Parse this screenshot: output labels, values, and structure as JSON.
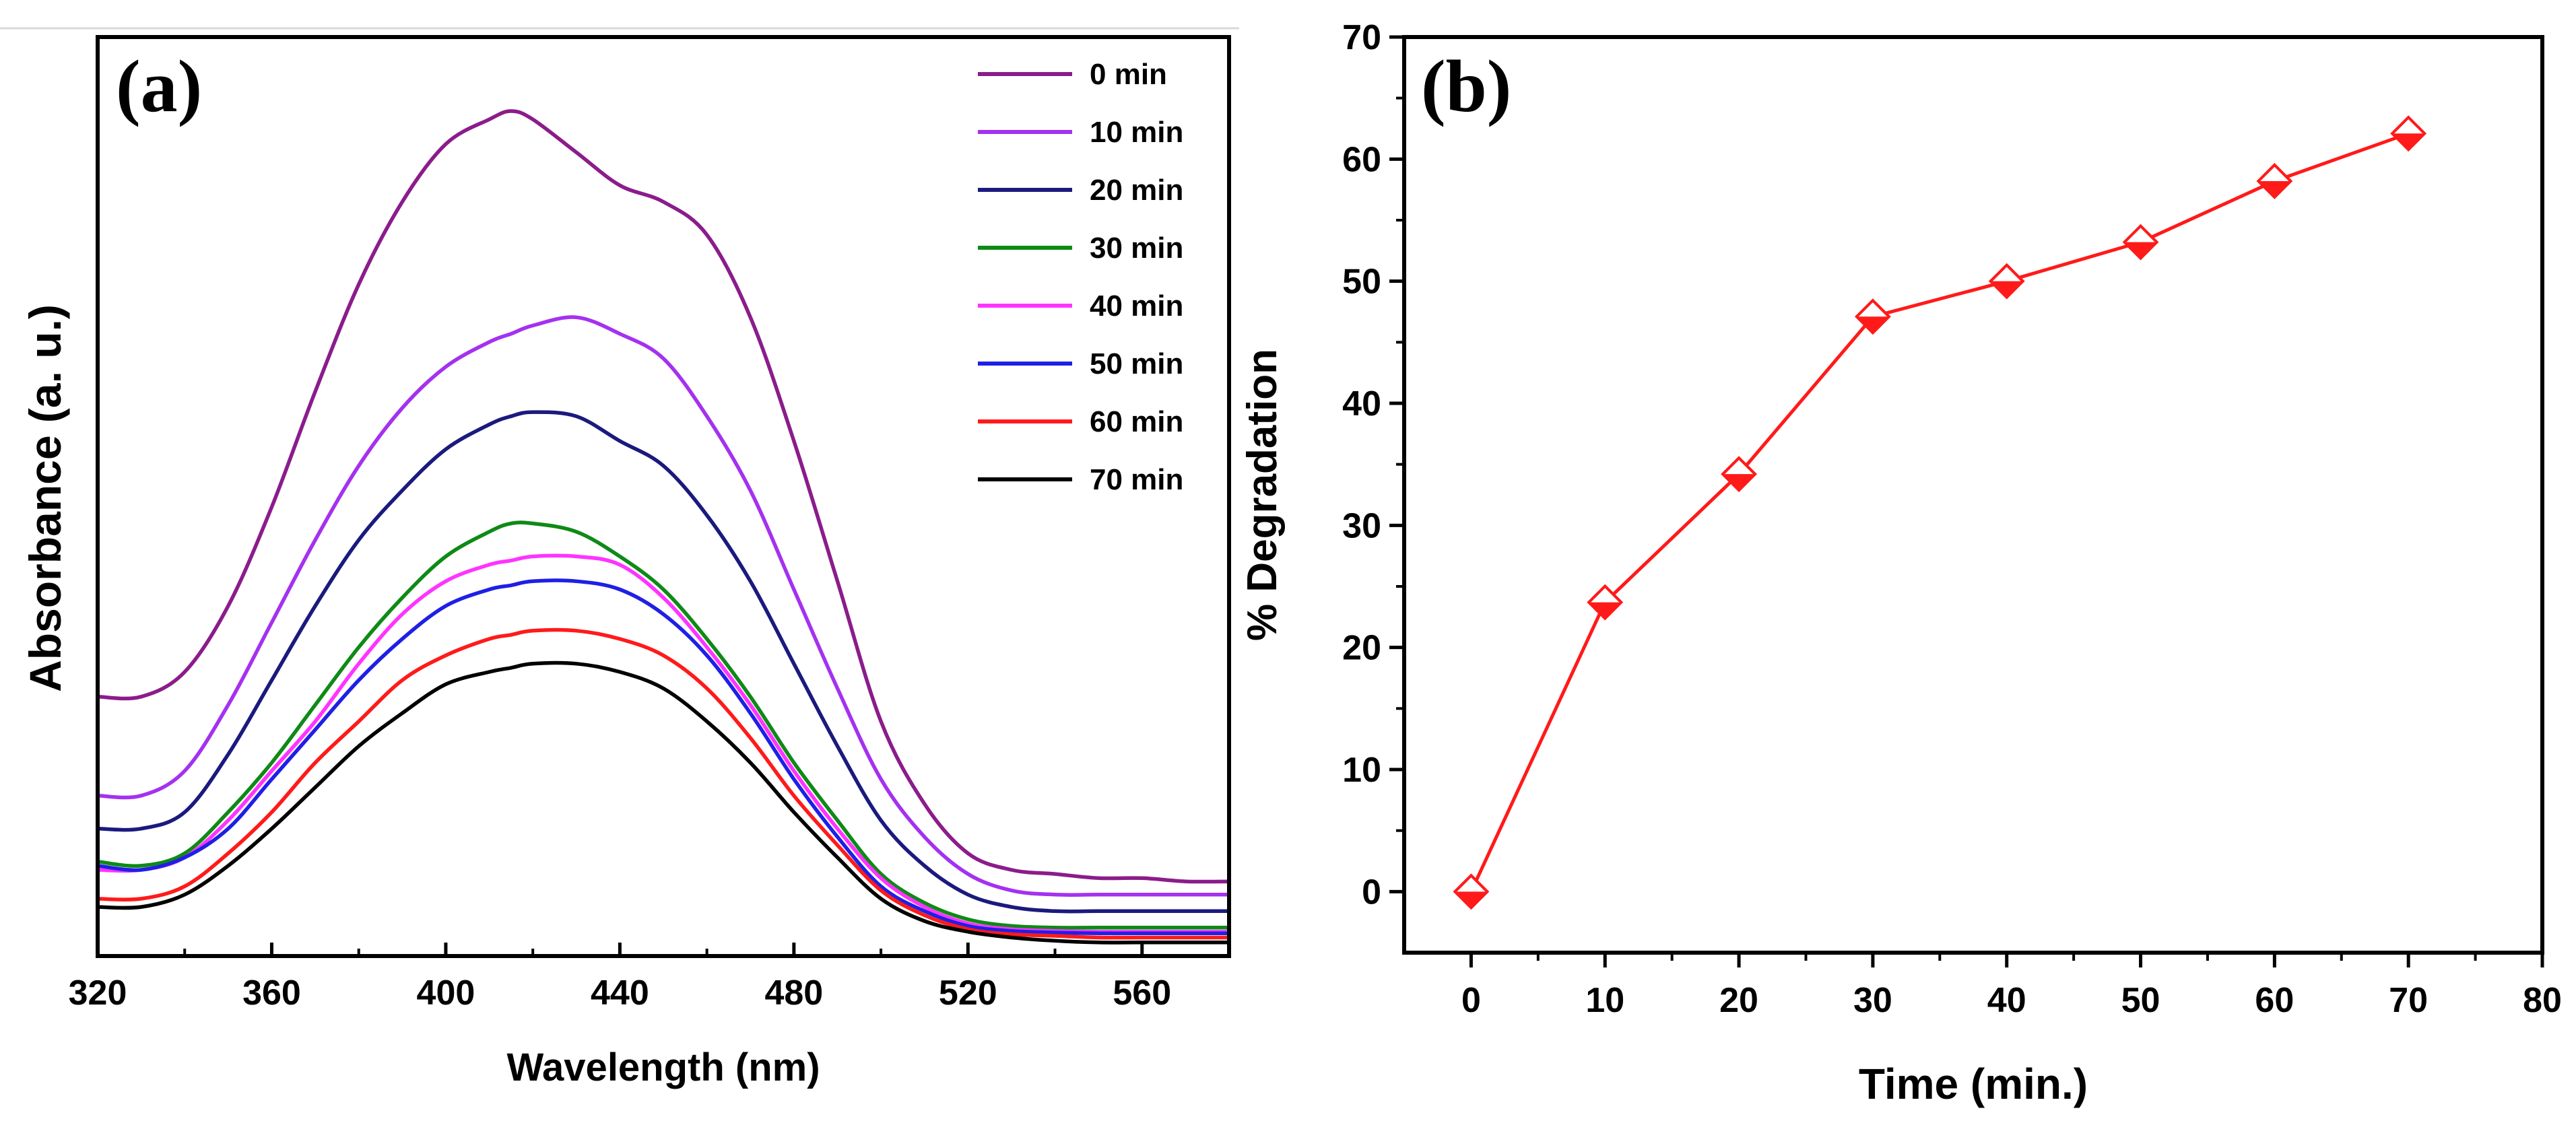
{
  "chart_data": [
    {
      "panel": "(a)",
      "type": "line",
      "xlabel": "Wavelength (nm)",
      "ylabel": "Absorbance (a. u.)",
      "xlim": [
        320,
        580
      ],
      "ylim": [
        0,
        1.0
      ],
      "xticks": [
        320,
        360,
        400,
        440,
        480,
        520,
        560
      ],
      "x": [
        320,
        330,
        340,
        350,
        360,
        370,
        380,
        390,
        400,
        410,
        415,
        420,
        430,
        440,
        450,
        460,
        470,
        480,
        490,
        500,
        510,
        520,
        530,
        540,
        550,
        560,
        570,
        580
      ],
      "series": [
        {
          "name": "0 min",
          "color": "#8B1C8B",
          "values": [
            0.29,
            0.29,
            0.32,
            0.4,
            0.52,
            0.66,
            0.79,
            0.89,
            0.96,
            0.99,
            1.0,
            0.99,
            0.95,
            0.91,
            0.89,
            0.85,
            0.75,
            0.6,
            0.43,
            0.26,
            0.16,
            0.1,
            0.08,
            0.075,
            0.07,
            0.07,
            0.066,
            0.066
          ]
        },
        {
          "name": "10 min",
          "color": "#A431F0",
          "values": [
            0.17,
            0.17,
            0.2,
            0.28,
            0.38,
            0.48,
            0.57,
            0.64,
            0.69,
            0.72,
            0.73,
            0.74,
            0.75,
            0.73,
            0.7,
            0.63,
            0.54,
            0.42,
            0.3,
            0.19,
            0.12,
            0.075,
            0.055,
            0.05,
            0.05,
            0.05,
            0.05,
            0.05
          ]
        },
        {
          "name": "20 min",
          "color": "#1A1A7E",
          "values": [
            0.13,
            0.13,
            0.15,
            0.22,
            0.31,
            0.4,
            0.48,
            0.54,
            0.59,
            0.62,
            0.63,
            0.635,
            0.63,
            0.6,
            0.57,
            0.51,
            0.43,
            0.33,
            0.23,
            0.14,
            0.085,
            0.05,
            0.035,
            0.03,
            0.03,
            0.03,
            0.03,
            0.03
          ]
        },
        {
          "name": "30 min",
          "color": "#0E8A16",
          "values": [
            0.09,
            0.085,
            0.1,
            0.15,
            0.21,
            0.28,
            0.35,
            0.41,
            0.46,
            0.49,
            0.5,
            0.5,
            0.49,
            0.46,
            0.42,
            0.36,
            0.29,
            0.21,
            0.14,
            0.075,
            0.04,
            0.02,
            0.012,
            0.01,
            0.01,
            0.01,
            0.01,
            0.01
          ]
        },
        {
          "name": "40 min",
          "color": "#FF33FF",
          "values": [
            0.08,
            0.08,
            0.095,
            0.14,
            0.2,
            0.26,
            0.33,
            0.39,
            0.43,
            0.45,
            0.455,
            0.46,
            0.46,
            0.45,
            0.41,
            0.35,
            0.28,
            0.2,
            0.13,
            0.07,
            0.035,
            0.015,
            0.008,
            0.006,
            0.005,
            0.005,
            0.005,
            0.005
          ]
        },
        {
          "name": "50 min",
          "color": "#1F1FE6",
          "values": [
            0.085,
            0.08,
            0.095,
            0.13,
            0.19,
            0.25,
            0.31,
            0.36,
            0.4,
            0.42,
            0.425,
            0.43,
            0.43,
            0.42,
            0.39,
            0.34,
            0.27,
            0.19,
            0.12,
            0.06,
            0.03,
            0.012,
            0.006,
            0.004,
            0.003,
            0.003,
            0.003,
            0.003
          ]
        },
        {
          "name": "60 min",
          "color": "#FF1A1A",
          "values": [
            0.045,
            0.045,
            0.06,
            0.1,
            0.15,
            0.21,
            0.26,
            0.31,
            0.34,
            0.36,
            0.365,
            0.37,
            0.37,
            0.36,
            0.34,
            0.3,
            0.24,
            0.17,
            0.11,
            0.055,
            0.025,
            0.008,
            0.002,
            0.0,
            -0.002,
            -0.002,
            -0.002,
            -0.002
          ]
        },
        {
          "name": "70 min",
          "color": "#000000",
          "values": [
            0.035,
            0.035,
            0.05,
            0.085,
            0.13,
            0.18,
            0.23,
            0.27,
            0.305,
            0.32,
            0.325,
            0.33,
            0.33,
            0.32,
            0.3,
            0.26,
            0.21,
            0.15,
            0.095,
            0.045,
            0.018,
            0.005,
            -0.002,
            -0.006,
            -0.008,
            -0.008,
            -0.008,
            -0.008
          ]
        }
      ]
    },
    {
      "panel": "(b)",
      "type": "line",
      "xlabel": "Time (min.)",
      "ylabel": "% Degradation",
      "xlim": [
        -5,
        80
      ],
      "ylim": [
        -5,
        70
      ],
      "xticks": [
        0,
        10,
        20,
        30,
        40,
        50,
        60,
        70,
        80
      ],
      "yticks": [
        0,
        10,
        20,
        30,
        40,
        50,
        60,
        70
      ],
      "series": [
        {
          "name": "% Degradation",
          "color": "#FF1A1A",
          "marker": "diamond",
          "x": [
            0,
            10,
            20,
            30,
            40,
            50,
            60,
            70
          ],
          "values": [
            0,
            23.7,
            34.2,
            47.1,
            50.0,
            53.2,
            58.2,
            62.1
          ]
        }
      ]
    }
  ]
}
